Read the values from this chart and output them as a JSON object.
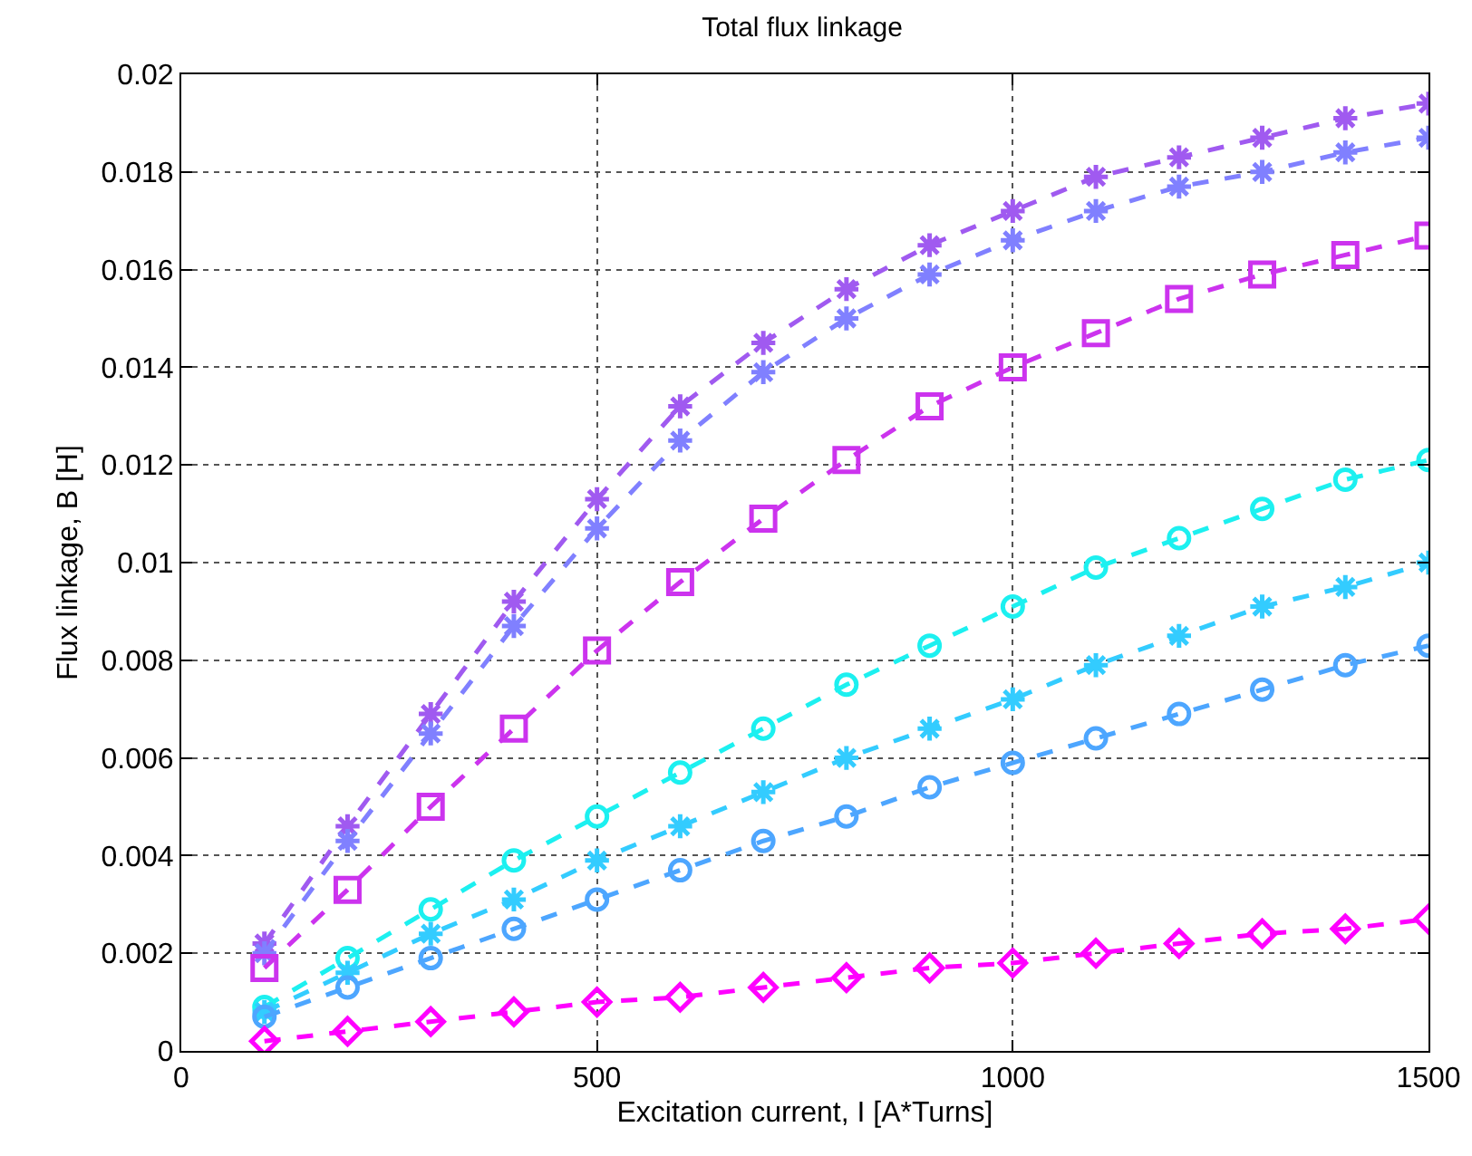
{
  "chart_data": {
    "type": "line",
    "title": "Total flux linkage",
    "xlabel": "Excitation current, I [A*Turns]",
    "ylabel": "Flux linkage, B [H]",
    "x": [
      100,
      200,
      300,
      400,
      500,
      600,
      700,
      800,
      900,
      1000,
      1100,
      1200,
      1300,
      1400,
      1500
    ],
    "series": [
      {
        "color": "#a05af0",
        "marker": "cross",
        "values": [
          0.0022,
          0.0046,
          0.0069,
          0.0092,
          0.0113,
          0.0132,
          0.0145,
          0.0156,
          0.0165,
          0.0172,
          0.0179,
          0.0183,
          0.0187,
          0.0191,
          0.0194
        ]
      },
      {
        "color": "#8080ff",
        "marker": "cross",
        "values": [
          0.002,
          0.0043,
          0.0065,
          0.0087,
          0.0107,
          0.0125,
          0.0139,
          0.015,
          0.0159,
          0.0166,
          0.0172,
          0.0177,
          0.018,
          0.0184,
          0.0187
        ]
      },
      {
        "color": "#cc33ee",
        "marker": "square",
        "values": [
          0.0017,
          0.0033,
          0.005,
          0.0066,
          0.0082,
          0.0096,
          0.0109,
          0.0121,
          0.0132,
          0.014,
          0.0147,
          0.0154,
          0.0159,
          0.0163,
          0.0167
        ]
      },
      {
        "color": "#1cf0f0",
        "marker": "circle",
        "values": [
          0.0009,
          0.0019,
          0.0029,
          0.0039,
          0.0048,
          0.0057,
          0.0066,
          0.0075,
          0.0083,
          0.0091,
          0.0099,
          0.0105,
          0.0111,
          0.0117,
          0.0121
        ]
      },
      {
        "color": "#33ccff",
        "marker": "cross",
        "values": [
          0.0008,
          0.0016,
          0.0024,
          0.0031,
          0.0039,
          0.0046,
          0.0053,
          0.006,
          0.0066,
          0.0072,
          0.0079,
          0.0085,
          0.0091,
          0.0095,
          0.01
        ]
      },
      {
        "color": "#4da6ff",
        "marker": "circle",
        "values": [
          0.0007,
          0.0013,
          0.0019,
          0.0025,
          0.0031,
          0.0037,
          0.0043,
          0.0048,
          0.0054,
          0.0059,
          0.0064,
          0.0069,
          0.0074,
          0.0079,
          0.0083
        ]
      },
      {
        "color": "#ff00ff",
        "marker": "diamond",
        "values": [
          0.0002,
          0.0004,
          0.0006,
          0.0008,
          0.001,
          0.0011,
          0.0013,
          0.0015,
          0.0017,
          0.0018,
          0.002,
          0.0022,
          0.0024,
          0.0025,
          0.0027
        ]
      }
    ],
    "xlim": [
      0,
      1500
    ],
    "xticks": [
      0,
      500,
      1000,
      1500
    ],
    "ylim": [
      0,
      0.02
    ],
    "yticks": [
      0,
      0.002,
      0.004,
      0.006,
      0.008,
      0.01,
      0.012,
      0.014,
      0.016,
      0.018,
      0.02
    ],
    "grid": true,
    "line_style": "dashed"
  }
}
